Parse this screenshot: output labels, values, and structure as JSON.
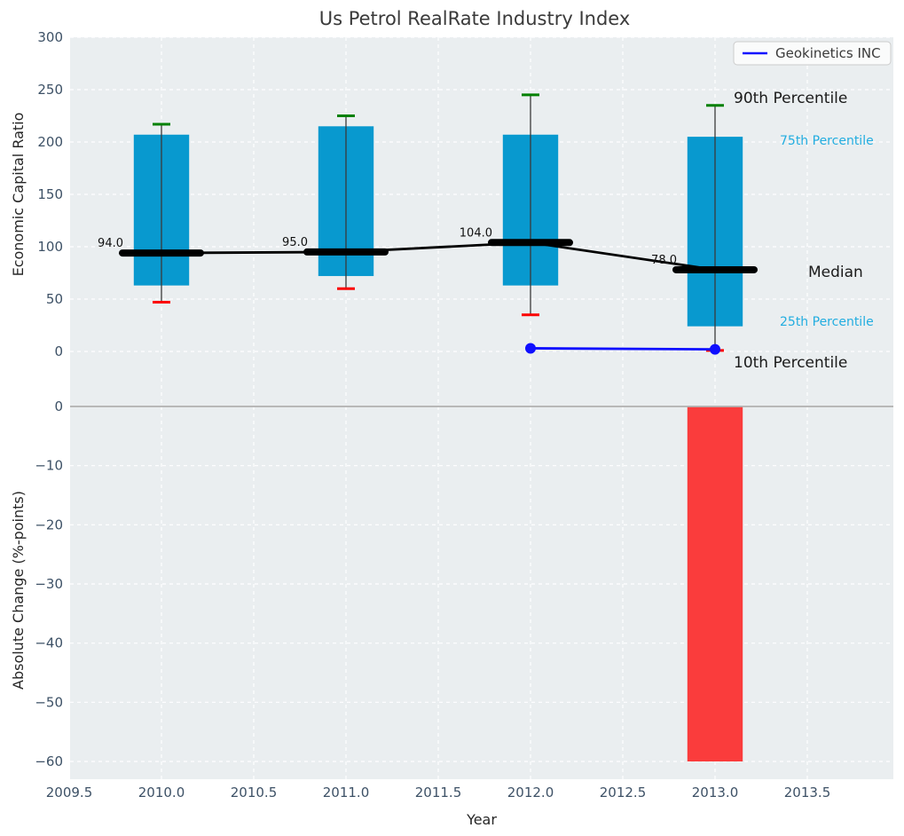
{
  "title": "Us Petrol RealRate Industry Index",
  "chart_data": {
    "type": "combo",
    "xlim": [
      2009.5,
      2014.0
    ],
    "xticks": {
      "values": [
        2009.5,
        2010.0,
        2010.5,
        2011.0,
        2011.5,
        2012.0,
        2012.5,
        2013.0,
        2013.5
      ],
      "labels": [
        "2009.5",
        "2010.0",
        "2010.5",
        "2011.0",
        "2011.5",
        "2012.0",
        "2012.5",
        "2013.0",
        "2013.5"
      ]
    },
    "panels": [
      {
        "id": "industry-index",
        "type": "percentile-band-box",
        "title": "Us Petrol RealRate Industry Index",
        "ylabel": "Economic Capital Ratio",
        "ylim": [
          0,
          300
        ],
        "yticks": {
          "values": [
            300,
            250,
            200,
            150,
            100,
            50,
            0
          ],
          "labels": [
            "300",
            "250",
            "200",
            "150",
            "100",
            "50",
            "0"
          ]
        },
        "years": [
          2010,
          2011,
          2012,
          2013
        ],
        "box_width_years": 0.3,
        "percentiles": {
          "p90": [
            217,
            225,
            245,
            235
          ],
          "p75": [
            207,
            215,
            207,
            205
          ],
          "median": [
            94,
            95,
            104,
            78
          ],
          "p25": [
            63,
            72,
            63,
            24
          ],
          "p10": [
            47,
            60,
            35,
            1
          ]
        },
        "median_labels": [
          "94.0",
          "95.0",
          "104.0",
          "78.0"
        ],
        "company_line": {
          "name": "Geokinetics INC",
          "x": [
            2012,
            2013
          ],
          "y": [
            3,
            2
          ]
        },
        "legend": {
          "label": "Geokinetics INC",
          "position": "upper right"
        },
        "annotations": {
          "p90": {
            "text": "90th Percentile"
          },
          "p75": {
            "text": "75th Percentile"
          },
          "median": {
            "text": "Median"
          },
          "p25": {
            "text": "25th Percentile"
          },
          "p10": {
            "text": "10th Percentile"
          }
        }
      },
      {
        "id": "absolute-change",
        "type": "bar",
        "ylabel": "Absolute Change (%-points)",
        "xlabel": "Year",
        "ylim": [
          -60,
          0
        ],
        "yticks": {
          "values": [
            0,
            -10,
            -20,
            -30,
            -40,
            -50,
            -60
          ],
          "labels": [
            "0",
            "−10",
            "−20",
            "−30",
            "−40",
            "−50",
            "−60"
          ]
        },
        "bar_width_years": 0.3,
        "bars": [
          {
            "x": 2013,
            "value": -60
          }
        ]
      }
    ]
  },
  "colors": {
    "plot_bg": "#eaeef0",
    "grid": "#ffffff",
    "tick_label": "#3d5166",
    "box_fill": "#0899cf",
    "whisker": "#3a3a3a",
    "cap_top": "#008000",
    "cap_bottom": "#fb0000",
    "median_line": "#000000",
    "company_line": "#0f0fff",
    "bar_negative": "#fa3c3c",
    "zero_line": "#b0b0b0",
    "annotation_cyan": "#22ade0",
    "annotation_black": "#1a1a1a"
  }
}
